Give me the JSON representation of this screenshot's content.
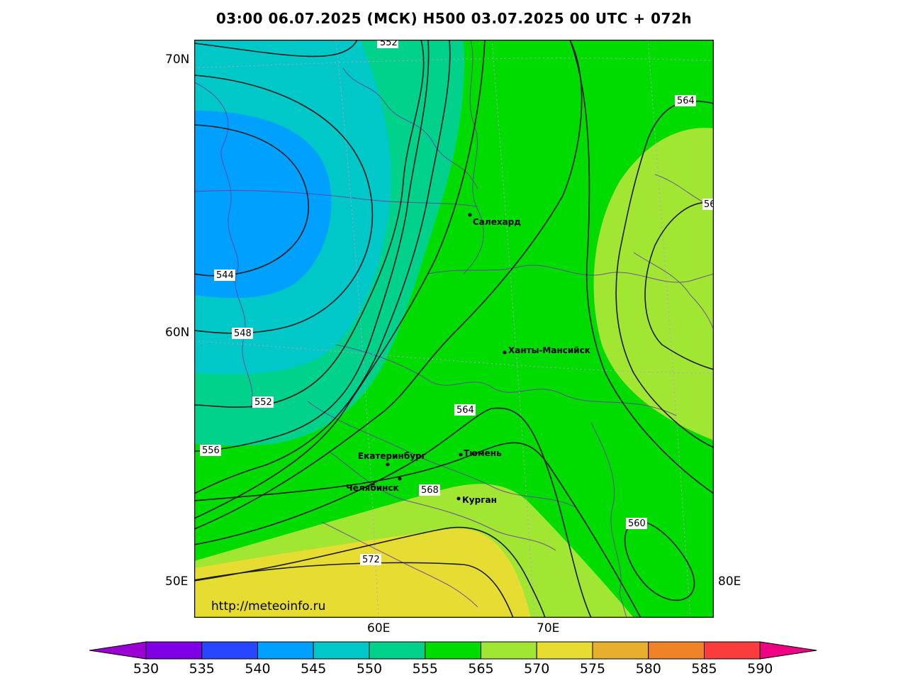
{
  "title": "03:00 06.07.2025 (МСК) Н500  03.07.2025 00 UTC + 072h",
  "watermark": "http://meteoinfo.ru",
  "lat_labels": [
    "70N",
    "60N",
    "50E"
  ],
  "lon_labels": [
    "60E",
    "70E",
    "80E"
  ],
  "cities": [
    {
      "name": "Салехард"
    },
    {
      "name": "Ханты-Мансийск"
    },
    {
      "name": "Екатеринбург"
    },
    {
      "name": "Тюмень"
    },
    {
      "name": "Челябинск"
    },
    {
      "name": "Курган"
    }
  ],
  "contour_labels": [
    "552",
    "564",
    "56",
    "544",
    "548",
    "552",
    "556",
    "564",
    "568",
    "560",
    "572"
  ],
  "colorbar": {
    "ticks": [
      "530",
      "535",
      "540",
      "545",
      "550",
      "555",
      "565",
      "570",
      "575",
      "580",
      "585",
      "590"
    ],
    "colors": [
      "#9b00d3",
      "#8000e6",
      "#2846ff",
      "#00a0ff",
      "#00c8c8",
      "#00d28c",
      "#00dc00",
      "#a0e632",
      "#e6dc32",
      "#e6af2d",
      "#f08228",
      "#fa3c3c",
      "#f00082"
    ]
  }
}
